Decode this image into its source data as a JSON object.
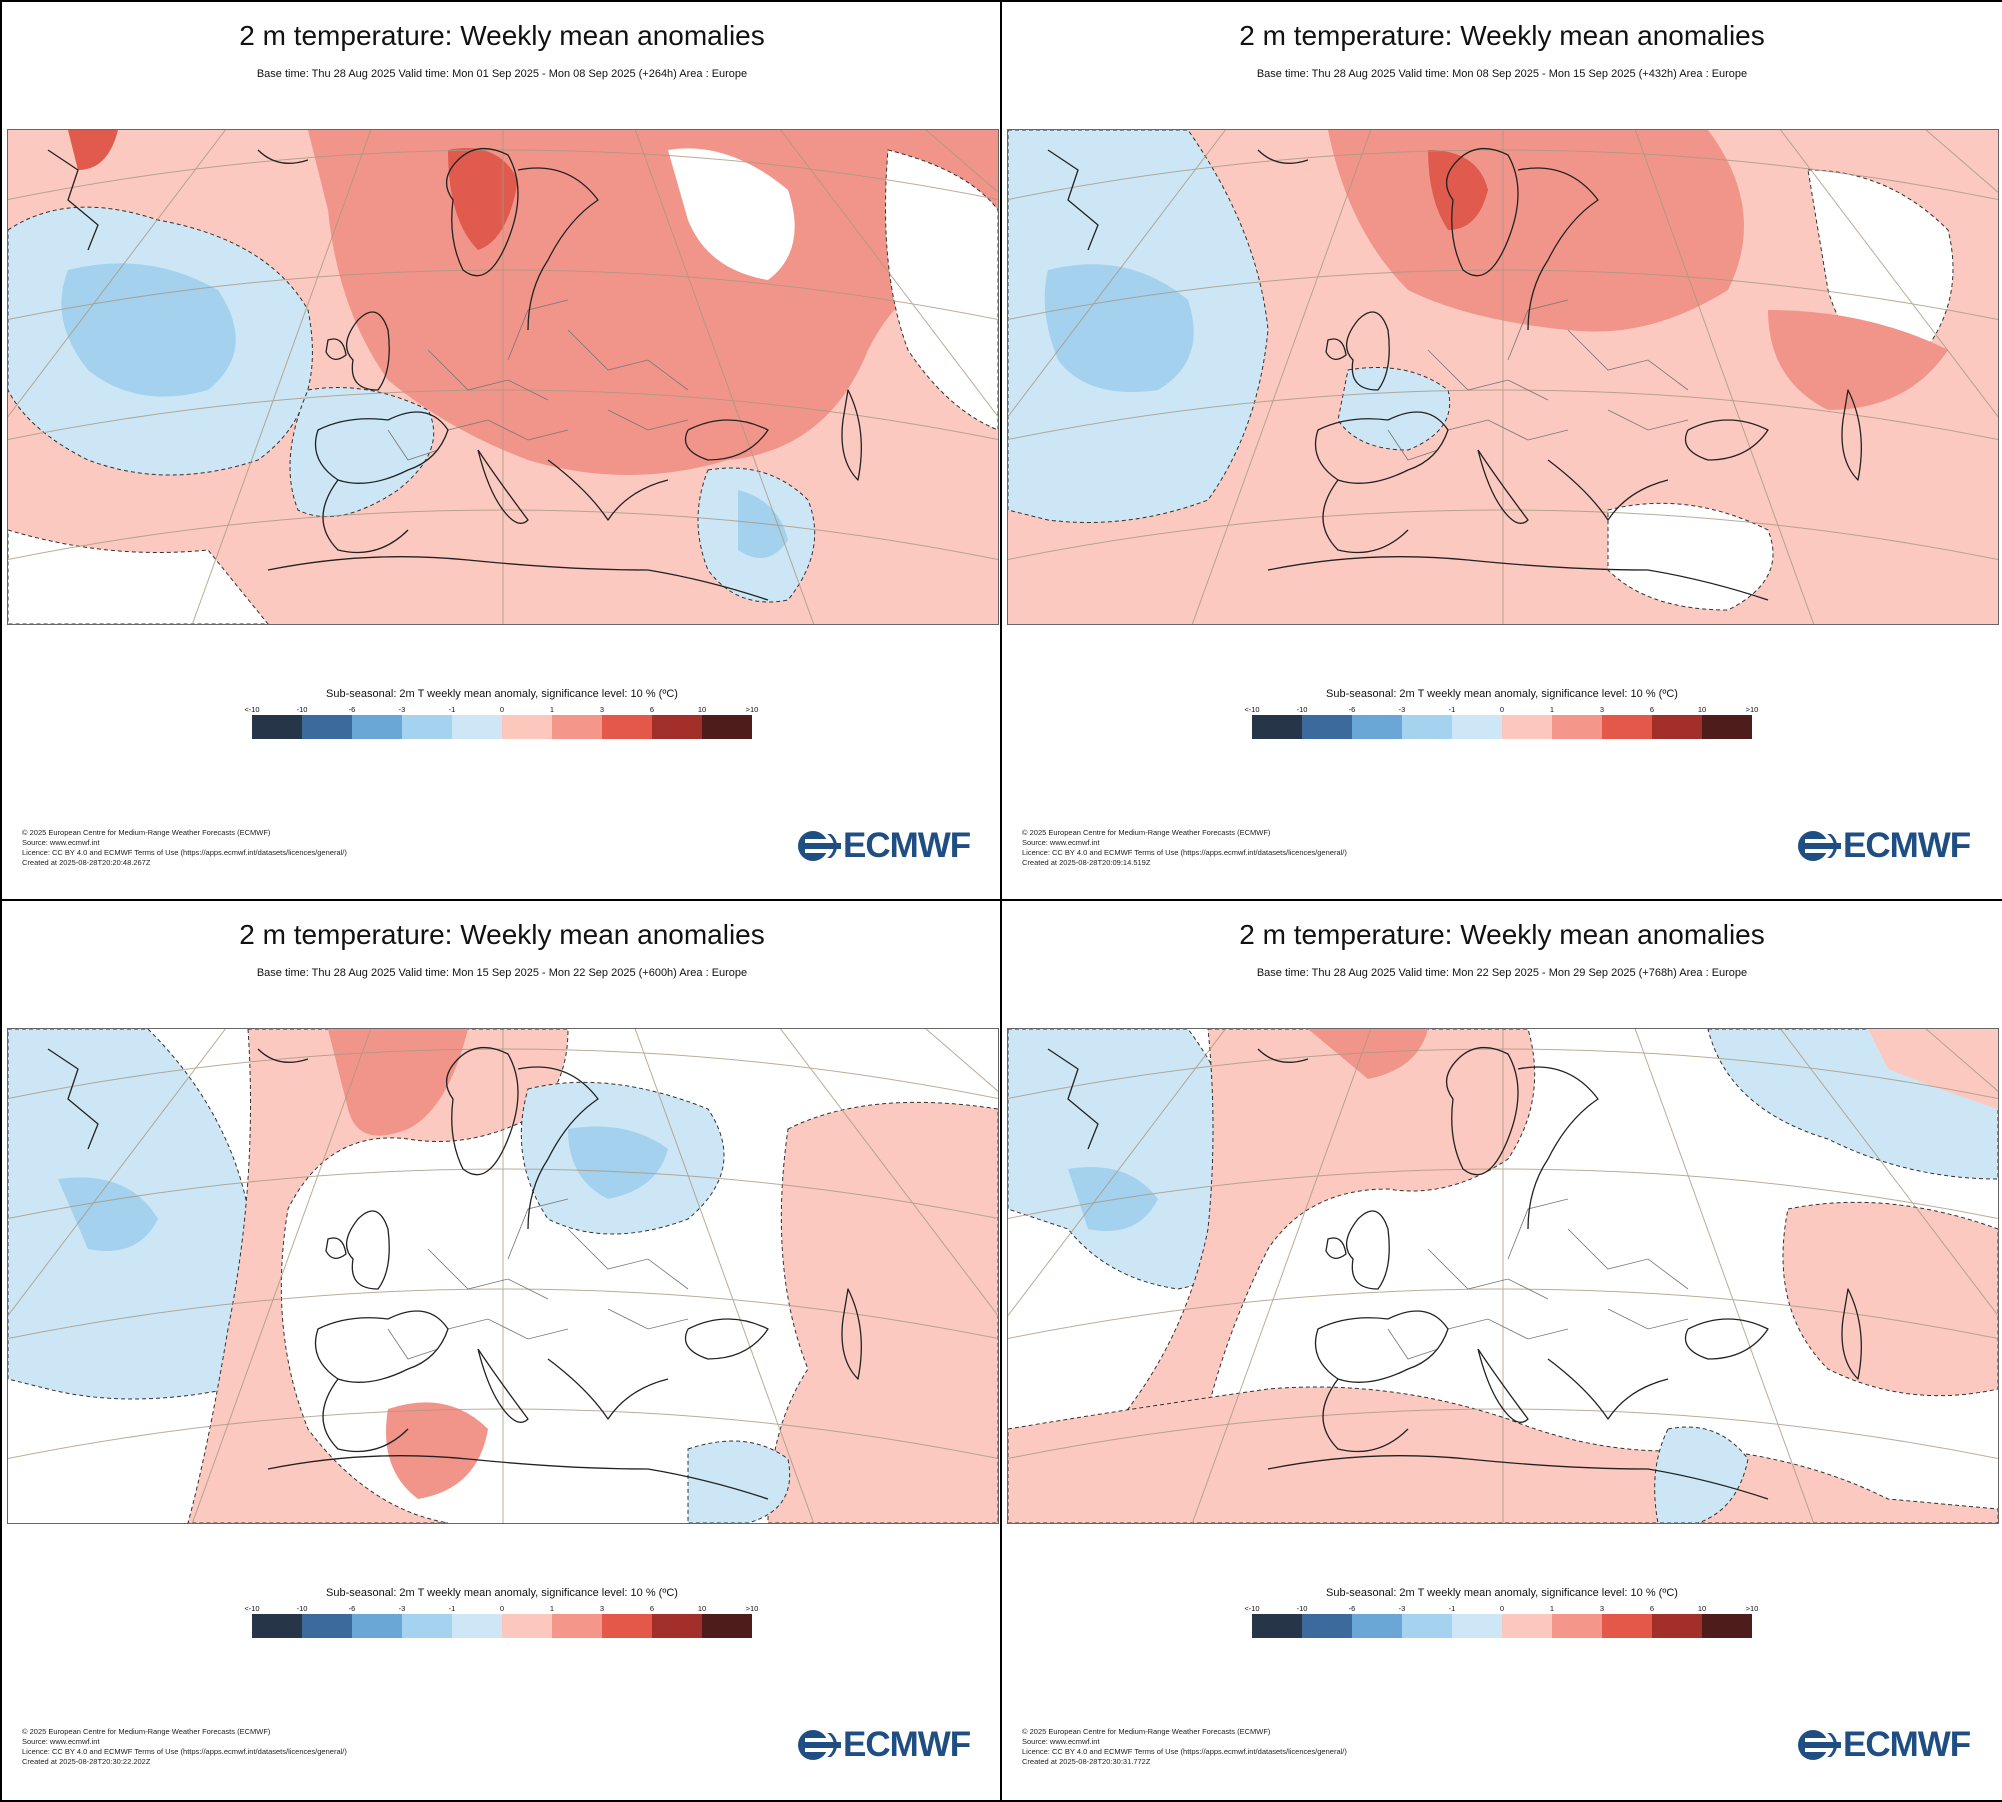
{
  "panels": [
    {
      "title": "2 m temperature: Weekly mean anomalies",
      "subtitle": "Base time: Thu 28 Aug 2025 Valid time: Mon 01 Sep 2025 - Mon 08 Sep 2025 (+264h) Area : Europe",
      "created": "Created at 2025-08-28T20:20:48.267Z",
      "pattern": "warm-east"
    },
    {
      "title": "2 m temperature: Weekly mean anomalies",
      "subtitle": "Base time: Thu 28 Aug 2025 Valid time: Mon 08 Sep 2025 - Mon 15 Sep 2025 (+432h) Area : Europe",
      "created": "Created at 2025-08-28T20:09:14.519Z",
      "pattern": "warm-broad"
    },
    {
      "title": "2 m temperature: Weekly mean anomalies",
      "subtitle": "Base time: Thu 28 Aug 2025 Valid time: Mon 15 Sep 2025 - Mon 22 Sep 2025 (+600h) Area : Europe",
      "created": "Created at 2025-08-28T20:30:22.202Z",
      "pattern": "mixed-cool"
    },
    {
      "title": "2 m temperature: Weekly mean anomalies",
      "subtitle": "Base time: Thu 28 Aug 2025 Valid time: Mon 22 Sep 2025 - Mon 29 Sep 2025 (+768h) Area : Europe",
      "created": "Created at 2025-08-28T20:30:31.772Z",
      "pattern": "mixed-neutral"
    }
  ],
  "legend": {
    "title": "Sub-seasonal: 2m T weekly mean anomaly, significance level: 10 % (ºC)",
    "ticks": [
      "<-10",
      "-10",
      "-6",
      "-3",
      "-1",
      "0",
      "1",
      "3",
      "6",
      "10",
      ">10"
    ],
    "colors": [
      "#263547",
      "#3d6a9c",
      "#6aa7d6",
      "#a5d3ef",
      "#cde7f6",
      "#fcc7bd",
      "#f4978a",
      "#e4584a",
      "#a22f2a",
      "#4e1c1a"
    ]
  },
  "footer": {
    "copyright": "© 2025 European Centre for Medium-Range Weather Forecasts (ECMWF)",
    "source": "Source: www.ecmwf.int",
    "licence": "Licence: CC BY 4.0 and ECMWF Terms of Use (https://apps.ecmwf.int/datasets/licences/general/)"
  },
  "logo": {
    "text": "ECMWF",
    "color": "#1f4f82"
  },
  "map_colors": {
    "white": "#ffffff",
    "light_red": "#fbc9bf",
    "red": "#f1958a",
    "strong_red": "#e05b4e",
    "dark_red": "#b93a33",
    "light_blue": "#cce6f5",
    "blue": "#a3d1ee",
    "coast": "#222222",
    "border": "#777777",
    "graticule": "#a89880"
  }
}
